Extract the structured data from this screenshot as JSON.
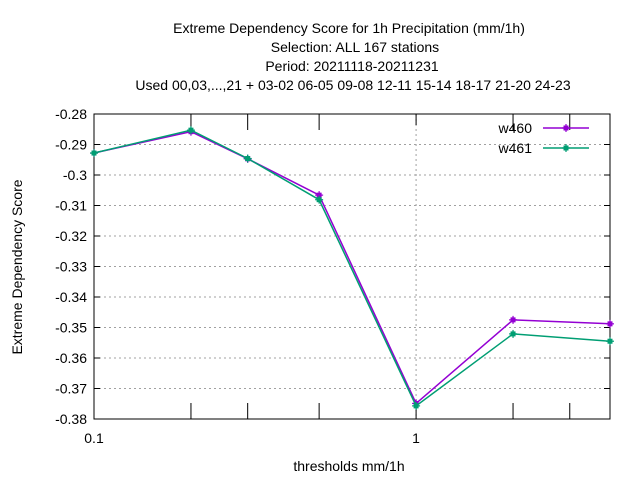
{
  "chart_data": {
    "type": "line",
    "title_lines": [
      "Extreme Dependency Score  for 1h Precipitation (mm/1h)",
      "Selection: ALL     167 stations",
      "Period: 20211118-20211231",
      "Used  00,03,...,21  + 03-02 06-05 09-08 12-11 15-14 18-17 21-20 24-23"
    ],
    "xlabel": "thresholds mm/1h",
    "ylabel": "Extreme Dependency Score",
    "x_scale": "log",
    "xlim": [
      0.1,
      4.0
    ],
    "ylim": [
      -0.38,
      -0.28
    ],
    "x_tick_labels": [
      {
        "value": 0.1,
        "label": "0.1"
      },
      {
        "value": 1,
        "label": "1"
      }
    ],
    "x_minor_ticks": [
      0.2,
      0.3,
      0.5,
      2,
      3
    ],
    "y_ticks": [
      -0.28,
      -0.29,
      -0.3,
      -0.31,
      -0.32,
      -0.33,
      -0.34,
      -0.35,
      -0.36,
      -0.37,
      -0.38
    ],
    "y_tick_labels": [
      "-0.28",
      "-0.29",
      "-0.3",
      "-0.31",
      "-0.32",
      "-0.33",
      "-0.34",
      "-0.35",
      "-0.36",
      "-0.37",
      "-0.38"
    ],
    "grid": true,
    "legend_position": "top-right",
    "series": [
      {
        "name": "w460",
        "color": "#9400d3",
        "x": [
          0.1,
          0.2,
          0.3,
          0.5,
          1,
          2,
          4
        ],
        "y": [
          -0.2928,
          -0.2858,
          -0.2947,
          -0.3066,
          -0.3749,
          -0.3475,
          -0.3488
        ]
      },
      {
        "name": "w461",
        "color": "#009e73",
        "x": [
          0.1,
          0.2,
          0.3,
          0.5,
          1,
          2,
          4
        ],
        "y": [
          -0.2928,
          -0.2853,
          -0.2946,
          -0.3081,
          -0.3757,
          -0.3521,
          -0.3545
        ]
      }
    ]
  }
}
